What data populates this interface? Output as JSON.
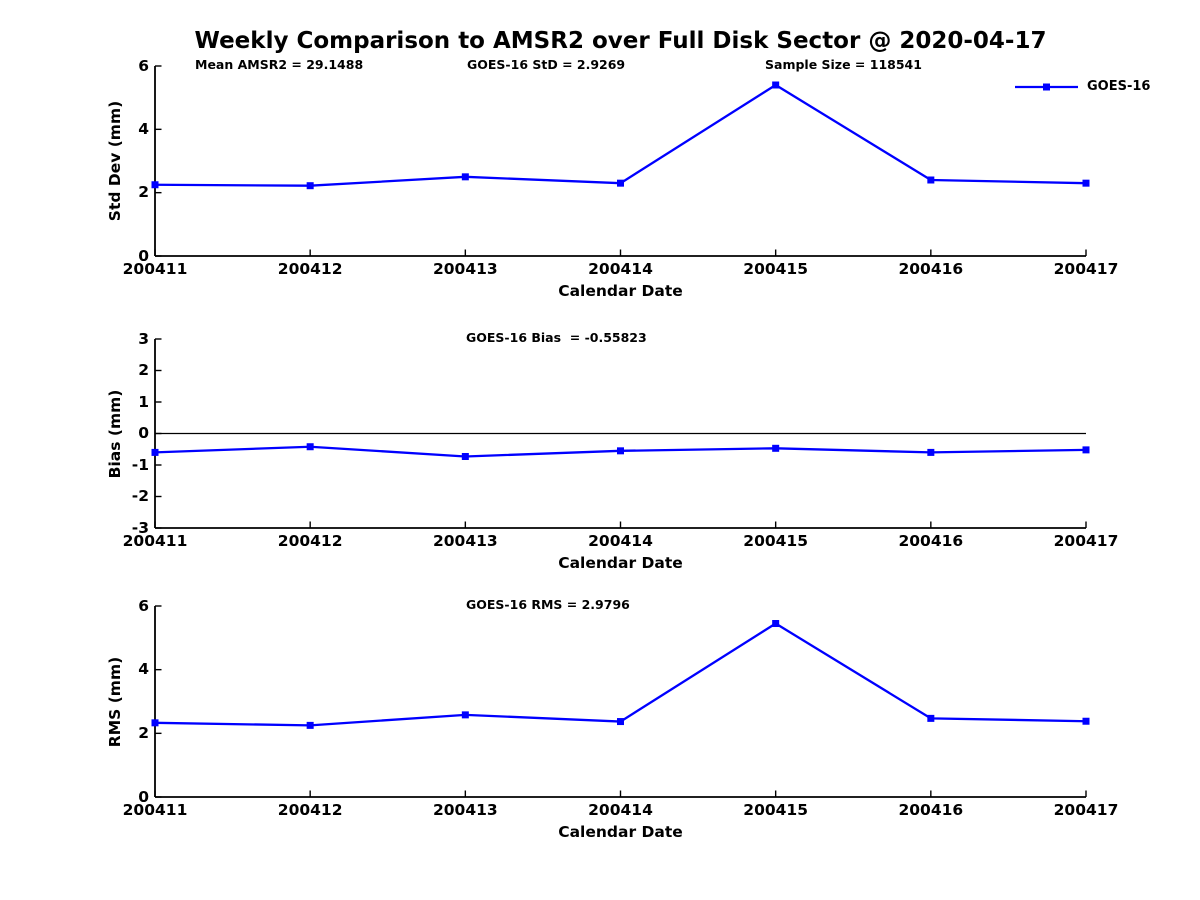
{
  "title": "Weekly Comparison to AMSR2 over Full Disk Sector @ 2020-04-17",
  "legend": {
    "label": "GOES-16"
  },
  "colors": {
    "series": "#0000ff",
    "axis": "#000000",
    "text": "#000000"
  },
  "chart_data": [
    {
      "type": "line",
      "ylabel": "Std Dev (mm)",
      "xlabel": "Calendar Date",
      "categories": [
        "200411",
        "200412",
        "200413",
        "200414",
        "200415",
        "200416",
        "200417"
      ],
      "series": [
        {
          "name": "GOES-16",
          "values": [
            2.25,
            2.22,
            2.5,
            2.3,
            5.4,
            2.4,
            2.3
          ]
        }
      ],
      "ylim": [
        0,
        6
      ],
      "yticks": [
        0,
        2,
        4,
        6
      ],
      "zero_line": false,
      "grid": false,
      "legend_position": "upper right",
      "annotations": [
        "Mean AMSR2 = 29.1488",
        "GOES-16 StD = 2.9269",
        "Sample Size = 118541"
      ]
    },
    {
      "type": "line",
      "ylabel": "Bias (mm)",
      "xlabel": "Calendar Date",
      "categories": [
        "200411",
        "200412",
        "200413",
        "200414",
        "200415",
        "200416",
        "200417"
      ],
      "series": [
        {
          "name": "GOES-16",
          "values": [
            -0.6,
            -0.42,
            -0.73,
            -0.55,
            -0.47,
            -0.6,
            -0.52
          ]
        }
      ],
      "ylim": [
        -3,
        3
      ],
      "yticks": [
        -3,
        -2,
        -1,
        0,
        1,
        2,
        3
      ],
      "zero_line": true,
      "grid": false,
      "annotations": [
        "GOES-16 Bias  = -0.55823"
      ]
    },
    {
      "type": "line",
      "ylabel": "RMS (mm)",
      "xlabel": "Calendar Date",
      "categories": [
        "200411",
        "200412",
        "200413",
        "200414",
        "200415",
        "200416",
        "200417"
      ],
      "series": [
        {
          "name": "GOES-16",
          "values": [
            2.33,
            2.25,
            2.58,
            2.37,
            5.45,
            2.47,
            2.38
          ]
        }
      ],
      "ylim": [
        0,
        6
      ],
      "yticks": [
        0,
        2,
        4,
        6
      ],
      "zero_line": false,
      "grid": false,
      "annotations": [
        "GOES-16 RMS = 2.9796"
      ]
    }
  ]
}
